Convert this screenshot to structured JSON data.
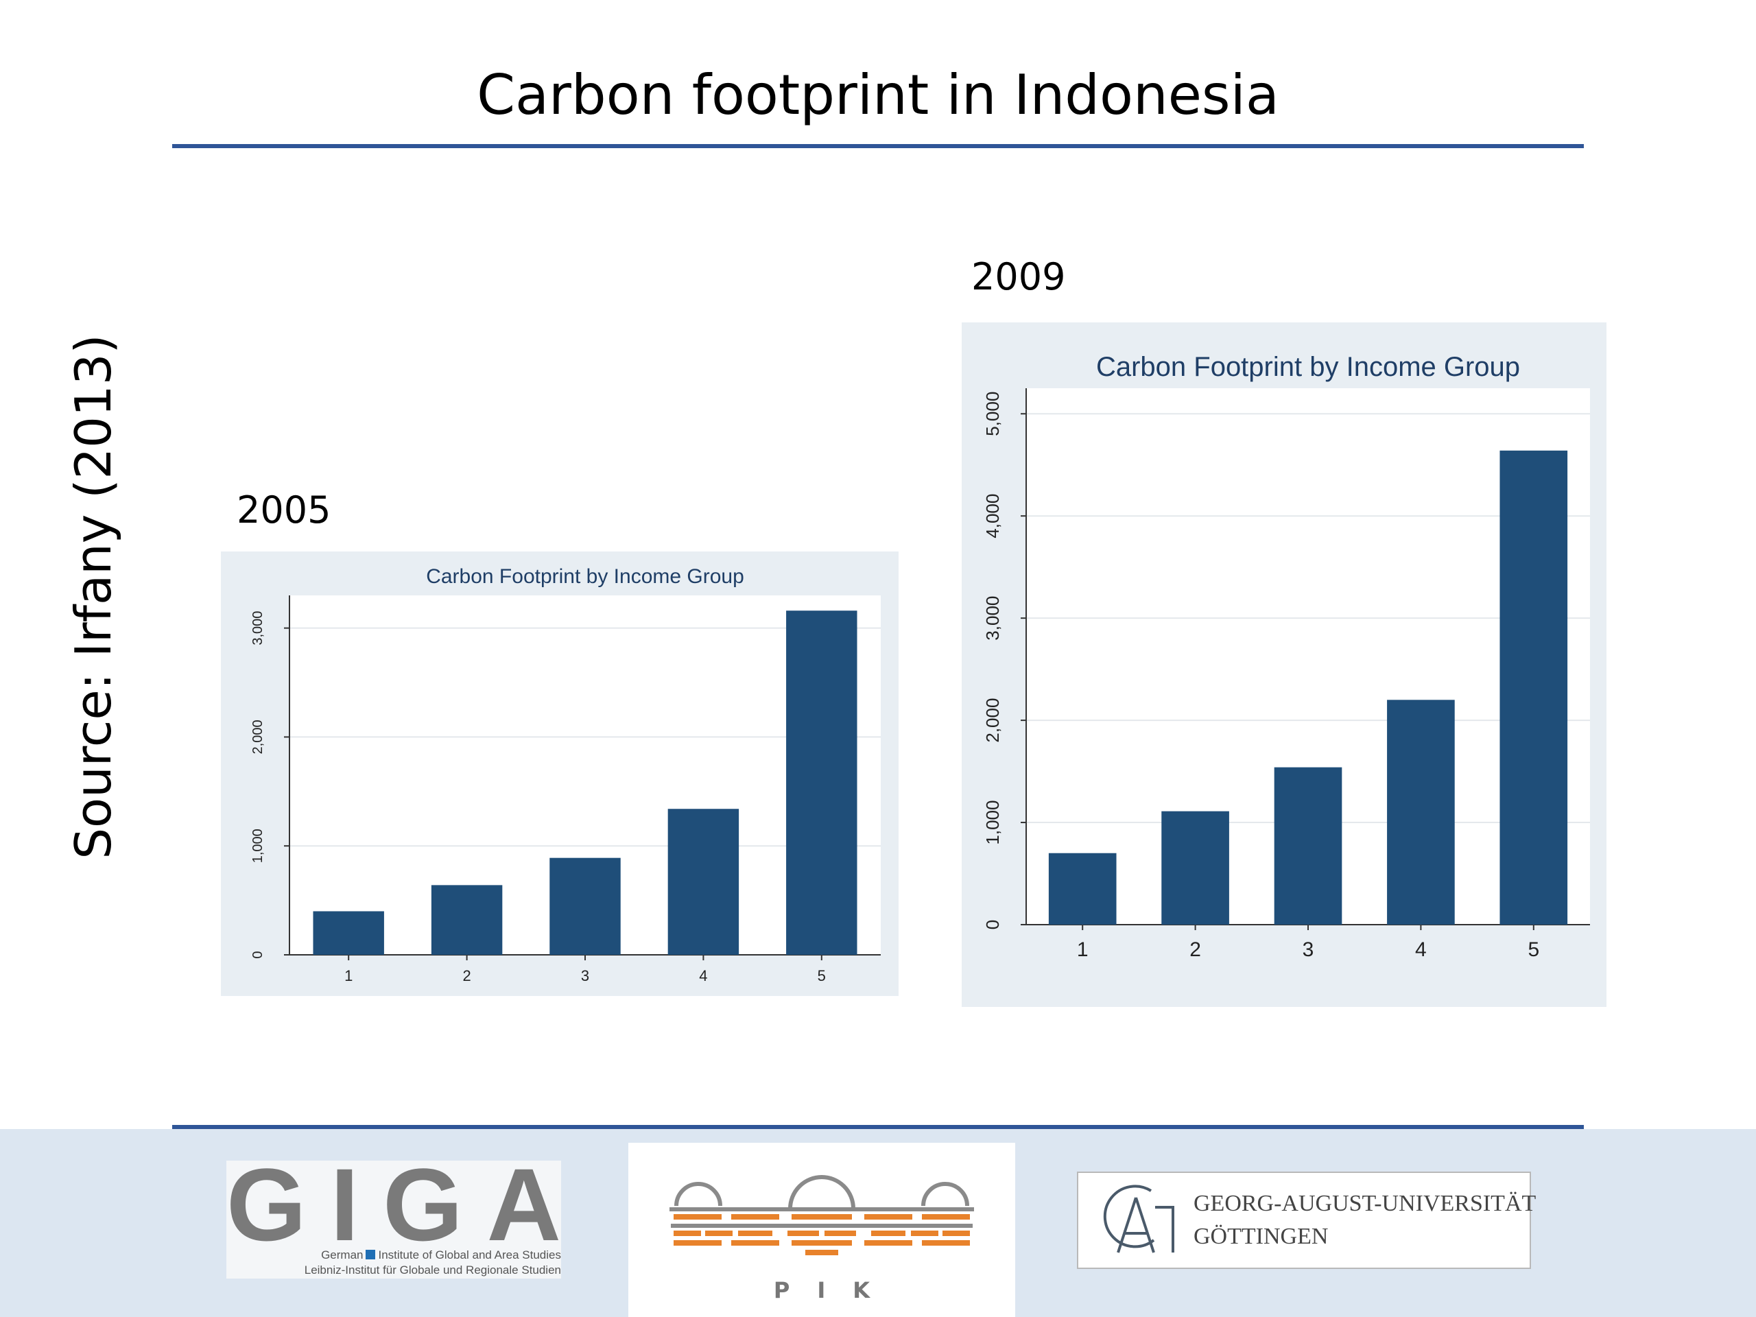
{
  "slide": {
    "title": "Carbon footprint in Indonesia",
    "source": "Source: Irfany (2013)"
  },
  "chart_data": [
    {
      "type": "bar",
      "panel_label": "2005",
      "title": "Carbon Footprint by Income Group",
      "categories": [
        "1",
        "2",
        "3",
        "4",
        "5"
      ],
      "values": [
        400,
        640,
        890,
        1340,
        3160
      ],
      "yticks": [
        "0",
        "1,000",
        "2,000",
        "3,000"
      ],
      "ylim": [
        0,
        3300
      ],
      "grid": true,
      "colors": {
        "bar": "#1f4e79",
        "background": "#e8eef3",
        "plot": "#ffffff"
      }
    },
    {
      "type": "bar",
      "panel_label": "2009",
      "title": "Carbon Footprint by Income Group",
      "categories": [
        "1",
        "2",
        "3",
        "4",
        "5"
      ],
      "values": [
        700,
        1110,
        1540,
        2200,
        4640
      ],
      "yticks": [
        "0",
        "1,000",
        "2,000",
        "3,000",
        "4,000",
        "5,000"
      ],
      "ylim": [
        0,
        5250
      ],
      "grid": true,
      "colors": {
        "bar": "#1f4e79",
        "background": "#e8eef3",
        "plot": "#ffffff"
      }
    }
  ],
  "footer": {
    "giga": {
      "letters": [
        "G",
        "I",
        "G",
        "A"
      ],
      "line1_left": "German",
      "line1_right": "Institute of Global and Area Studies",
      "line2": "Leibniz-Institut für Globale und Regionale Studien"
    },
    "pik": {
      "text": "PIK"
    },
    "goettingen": {
      "line1": "GEORG-AUGUST-UNIVERSITÄT",
      "line2": "GÖTTINGEN"
    },
    "colors": {
      "rule": "#2f5597",
      "footer_bg": "#dce6f1",
      "pik_orange": "#e8822b",
      "pik_grey": "#8a8a8a"
    }
  }
}
